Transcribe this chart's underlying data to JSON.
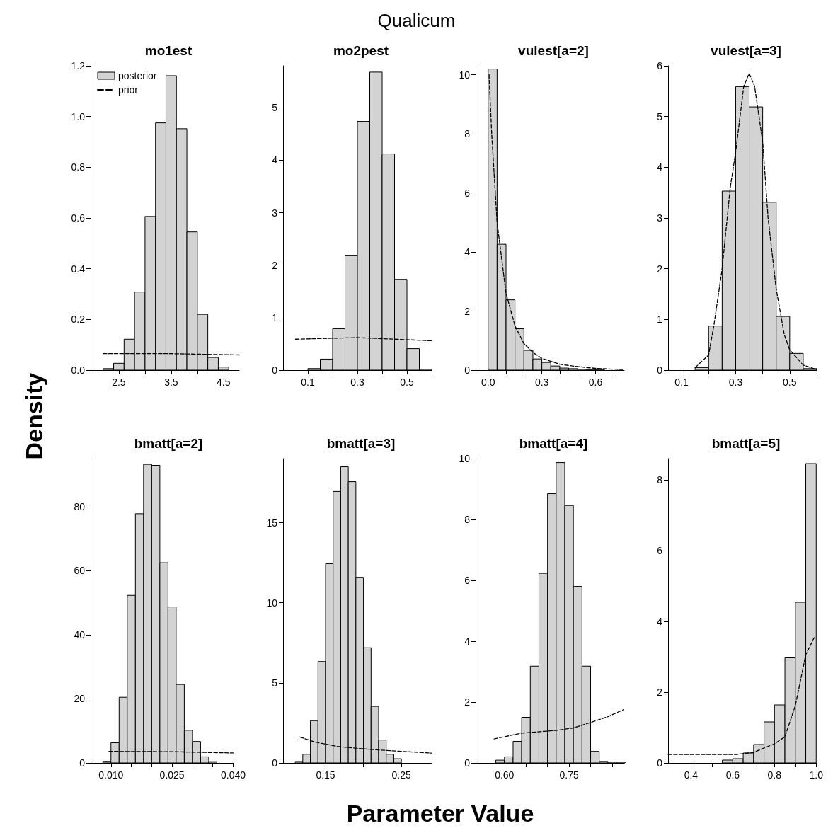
{
  "chart_data": [
    {
      "type": "histogram",
      "title": "mo1est",
      "annotations": [
        "Qualicum",
        "Density",
        "Parameter Value"
      ],
      "legend": "top left",
      "bins": [
        2.2,
        2.4,
        2.6,
        2.8,
        3.0,
        3.2,
        3.4,
        3.6,
        3.8,
        4.0,
        4.2,
        4.4,
        4.6
      ],
      "series": [
        {
          "name": "posterior",
          "color": "#d3d3d3",
          "values": [
            0.006,
            0.027,
            0.122,
            0.308,
            0.606,
            0.975,
            1.161,
            0.952,
            0.545,
            0.22,
            0.05,
            0.012
          ]
        },
        {
          "name": "prior",
          "type": "line",
          "color": "#000000",
          "line_style": "dashed",
          "x": [
            2.2,
            3.5,
            4.8
          ],
          "values": [
            0.065,
            0.065,
            0.06
          ]
        }
      ],
      "xlim": [
        1.96,
        4.8
      ],
      "ylim": [
        0,
        1.2
      ],
      "xticks": [
        2.5,
        {
          "value": 3,
          "label": null
        },
        3.5,
        {
          "value": 4,
          "label": null
        },
        4.5
      ],
      "yticks": [
        {
          "value": 0,
          "label": "0.0"
        },
        0.2,
        0.4,
        0.6,
        0.8,
        {
          "value": 1,
          "label": "1.0"
        },
        1.2
      ]
    },
    {
      "type": "histogram",
      "title": "mo2pest",
      "bins": [
        0.1,
        0.15,
        0.2,
        0.25,
        0.3,
        0.35,
        0.4,
        0.45,
        0.5,
        0.55,
        0.6
      ],
      "series": [
        {
          "color": "#d3d3d3",
          "values": [
            0.03,
            0.21,
            0.79,
            2.18,
            4.74,
            5.68,
            4.12,
            1.73,
            0.41,
            0.02
          ]
        },
        {
          "type": "line",
          "color": "#000000",
          "line_style": "dashed",
          "x": [
            0.05,
            0.3,
            0.6
          ],
          "values": [
            0.59,
            0.62,
            0.56
          ]
        }
      ],
      "xlim": [
        0,
        0.6
      ],
      "ylim": [
        0,
        5.8
      ],
      "xticks": [
        0.1,
        {
          "value": 0.2,
          "label": null
        },
        0.3,
        {
          "value": 0.4,
          "label": null
        },
        0.5,
        {
          "value": 0.6,
          "label": null
        }
      ],
      "yticks": [
        0,
        1,
        2,
        3,
        4,
        5
      ]
    },
    {
      "type": "histogram",
      "title": "vulest[a=2]",
      "bins": [
        0,
        0.05,
        0.1,
        0.15,
        0.2,
        0.25,
        0.3,
        0.35,
        0.4,
        0.45,
        0.5,
        0.55,
        0.6,
        0.65,
        0.7,
        0.75
      ],
      "series": [
        {
          "color": "#d3d3d3",
          "values": [
            10.19,
            4.26,
            2.38,
            1.4,
            0.67,
            0.38,
            0.26,
            0.14,
            0.07,
            0.05,
            0.03,
            0.02,
            0.02,
            null,
            null
          ]
        },
        {
          "type": "line",
          "color": "#000000",
          "line_style": "dashed",
          "x": [
            0.005,
            0.02,
            0.05,
            0.1,
            0.15,
            0.2,
            0.25,
            0.3,
            0.4,
            0.5,
            0.6,
            0.75
          ],
          "values": [
            10.0,
            8.0,
            5.0,
            2.6,
            1.5,
            0.9,
            0.6,
            0.4,
            0.2,
            0.12,
            0.06,
            0.02
          ]
        }
      ],
      "xlim": [
        -0.07,
        0.76
      ],
      "ylim": [
        0,
        10.3
      ],
      "xticks": [
        {
          "value": 0,
          "label": "0.0"
        },
        {
          "value": 0.1,
          "label": null
        },
        {
          "value": 0.2,
          "label": null
        },
        0.3,
        {
          "value": 0.4,
          "label": null
        },
        {
          "value": 0.5,
          "label": null
        },
        0.6,
        {
          "value": 0.7,
          "label": null
        }
      ],
      "yticks": [
        0,
        2,
        4,
        6,
        8,
        10
      ]
    },
    {
      "type": "histogram",
      "title": "vulest[a=3]",
      "bins": [
        0.15,
        0.2,
        0.25,
        0.3,
        0.35,
        0.4,
        0.45,
        0.5,
        0.55,
        0.6
      ],
      "series": [
        {
          "color": "#d3d3d3",
          "values": [
            0.05,
            0.87,
            3.53,
            5.59,
            5.19,
            3.31,
            1.06,
            0.33,
            0.03
          ]
        },
        {
          "type": "line",
          "color": "#000000",
          "line_style": "dashed",
          "x": [
            0.15,
            0.2,
            0.22,
            0.25,
            0.28,
            0.3,
            0.33,
            0.35,
            0.37,
            0.4,
            0.42,
            0.45,
            0.48,
            0.5,
            0.55,
            0.6
          ],
          "values": [
            0.05,
            0.3,
            0.9,
            2.0,
            3.6,
            4.3,
            5.6,
            5.85,
            5.6,
            4.5,
            3.0,
            1.6,
            0.7,
            0.4,
            0.1,
            0.01
          ]
        }
      ],
      "xlim": [
        0.05,
        0.6
      ],
      "ylim": [
        0,
        6
      ],
      "xticks": [
        0.1,
        {
          "value": 0.2,
          "label": null
        },
        0.3,
        {
          "value": 0.4,
          "label": null
        },
        0.5,
        {
          "value": 0.6,
          "label": null
        }
      ],
      "yticks": [
        0,
        1,
        2,
        3,
        4,
        5,
        6
      ]
    },
    {
      "type": "histogram",
      "title": "bmatt[a=2]",
      "bins": [
        0.008,
        0.01,
        0.012,
        0.014,
        0.016,
        0.018,
        0.02,
        0.022,
        0.024,
        0.026,
        0.028,
        0.03,
        0.032,
        0.034,
        0.036
      ],
      "series": [
        {
          "color": "#d3d3d3",
          "values": [
            0.5,
            6.3,
            20.5,
            52.3,
            77.8,
            93.2,
            92.9,
            62.5,
            48.7,
            24.5,
            10.2,
            6.7,
            1.9,
            0.4
          ]
        },
        {
          "type": "line",
          "color": "#000000",
          "line_style": "dashed",
          "x": [
            0.0095,
            0.025,
            0.04
          ],
          "values": [
            3.6,
            3.5,
            3.1
          ]
        }
      ],
      "xlim": [
        0.005,
        0.04
      ],
      "ylim": [
        0,
        95
      ],
      "xticks": [
        {
          "value": 0.01,
          "label": "0.010"
        },
        {
          "value": 0.015,
          "label": null
        },
        {
          "value": 0.02,
          "label": null
        },
        0.025,
        {
          "value": 0.03,
          "label": null
        },
        {
          "value": 0.035,
          "label": null
        },
        {
          "value": 0.04,
          "label": "0.040"
        }
      ],
      "yticks": [
        0,
        20,
        40,
        60,
        80
      ]
    },
    {
      "type": "histogram",
      "title": "bmatt[a=3]",
      "bins": [
        0.11,
        0.12,
        0.13,
        0.14,
        0.15,
        0.16,
        0.17,
        0.18,
        0.19,
        0.2,
        0.21,
        0.22,
        0.23,
        0.24,
        0.25
      ],
      "series": [
        {
          "color": "#d3d3d3",
          "values": [
            0.09,
            0.54,
            2.64,
            6.33,
            12.44,
            16.95,
            18.49,
            17.56,
            11.59,
            7.19,
            3.53,
            1.43,
            0.54,
            0.26
          ]
        },
        {
          "type": "line",
          "color": "#000000",
          "line_style": "dashed",
          "x": [
            0.116,
            0.135,
            0.164,
            0.197,
            0.23,
            0.29
          ],
          "values": [
            1.62,
            1.32,
            1.04,
            0.89,
            0.78,
            0.61
          ]
        }
      ],
      "xlim": [
        0.094,
        0.29
      ],
      "ylim": [
        0,
        19
      ],
      "xticks": [
        0.15,
        {
          "value": 0.2,
          "label": null
        },
        0.25
      ],
      "yticks": [
        0,
        5,
        10,
        15
      ]
    },
    {
      "type": "histogram",
      "title": "bmatt[a=4]",
      "bins": [
        0.58,
        0.6,
        0.62,
        0.64,
        0.66,
        0.68,
        0.7,
        0.72,
        0.74,
        0.76,
        0.78,
        0.8,
        0.82,
        0.84,
        0.86,
        0.88
      ],
      "series": [
        {
          "color": "#d3d3d3",
          "values": [
            0.09,
            0.2,
            0.71,
            1.5,
            3.18,
            6.23,
            8.85,
            9.87,
            8.46,
            5.8,
            3.18,
            0.38,
            0.05,
            0.03,
            0.03
          ]
        },
        {
          "type": "line",
          "color": "#000000",
          "line_style": "dashed",
          "x": [
            0.576,
            0.64,
            0.72,
            0.76,
            0.8,
            0.84,
            0.876
          ],
          "values": [
            0.79,
            0.98,
            1.07,
            1.15,
            1.33,
            1.52,
            1.75
          ]
        }
      ],
      "xlim": [
        0.533,
        0.878
      ],
      "ylim": [
        0,
        10
      ],
      "xticks": [
        {
          "value": 0.6,
          "label": "0.60"
        },
        {
          "value": 0.65,
          "label": null
        },
        {
          "value": 0.7,
          "label": null
        },
        0.75,
        {
          "value": 0.8,
          "label": null
        },
        {
          "value": 0.85,
          "label": null
        }
      ],
      "yticks": [
        0,
        2,
        4,
        6,
        8,
        10
      ]
    },
    {
      "type": "histogram",
      "title": "bmatt[a=5]",
      "bins": [
        0.55,
        0.6,
        0.65,
        0.7,
        0.75,
        0.8,
        0.85,
        0.9,
        0.95,
        1.0
      ],
      "series": [
        {
          "color": "#d3d3d3",
          "values": [
            0.08,
            0.12,
            0.28,
            0.52,
            1.16,
            1.64,
            2.97,
            4.54,
            8.46
          ]
        },
        {
          "type": "line",
          "color": "#000000",
          "line_style": "dashed",
          "x": [
            0.29,
            0.62,
            0.7,
            0.8,
            0.85,
            0.9,
            0.925,
            0.95,
            0.99
          ],
          "values": [
            0.24,
            0.24,
            0.3,
            0.54,
            0.74,
            1.62,
            2.34,
            3.06,
            3.54
          ]
        }
      ],
      "xlim": [
        0.29,
        1.0
      ],
      "ylim": [
        0,
        8.6
      ],
      "xticks": [
        0.4,
        {
          "value": 0.5,
          "label": null
        },
        0.6,
        {
          "value": 0.7,
          "label": null
        },
        0.8,
        {
          "value": 0.9,
          "label": null
        },
        {
          "value": 1,
          "label": "1.0"
        }
      ],
      "yticks": [
        0,
        2,
        4,
        6,
        8
      ]
    }
  ]
}
